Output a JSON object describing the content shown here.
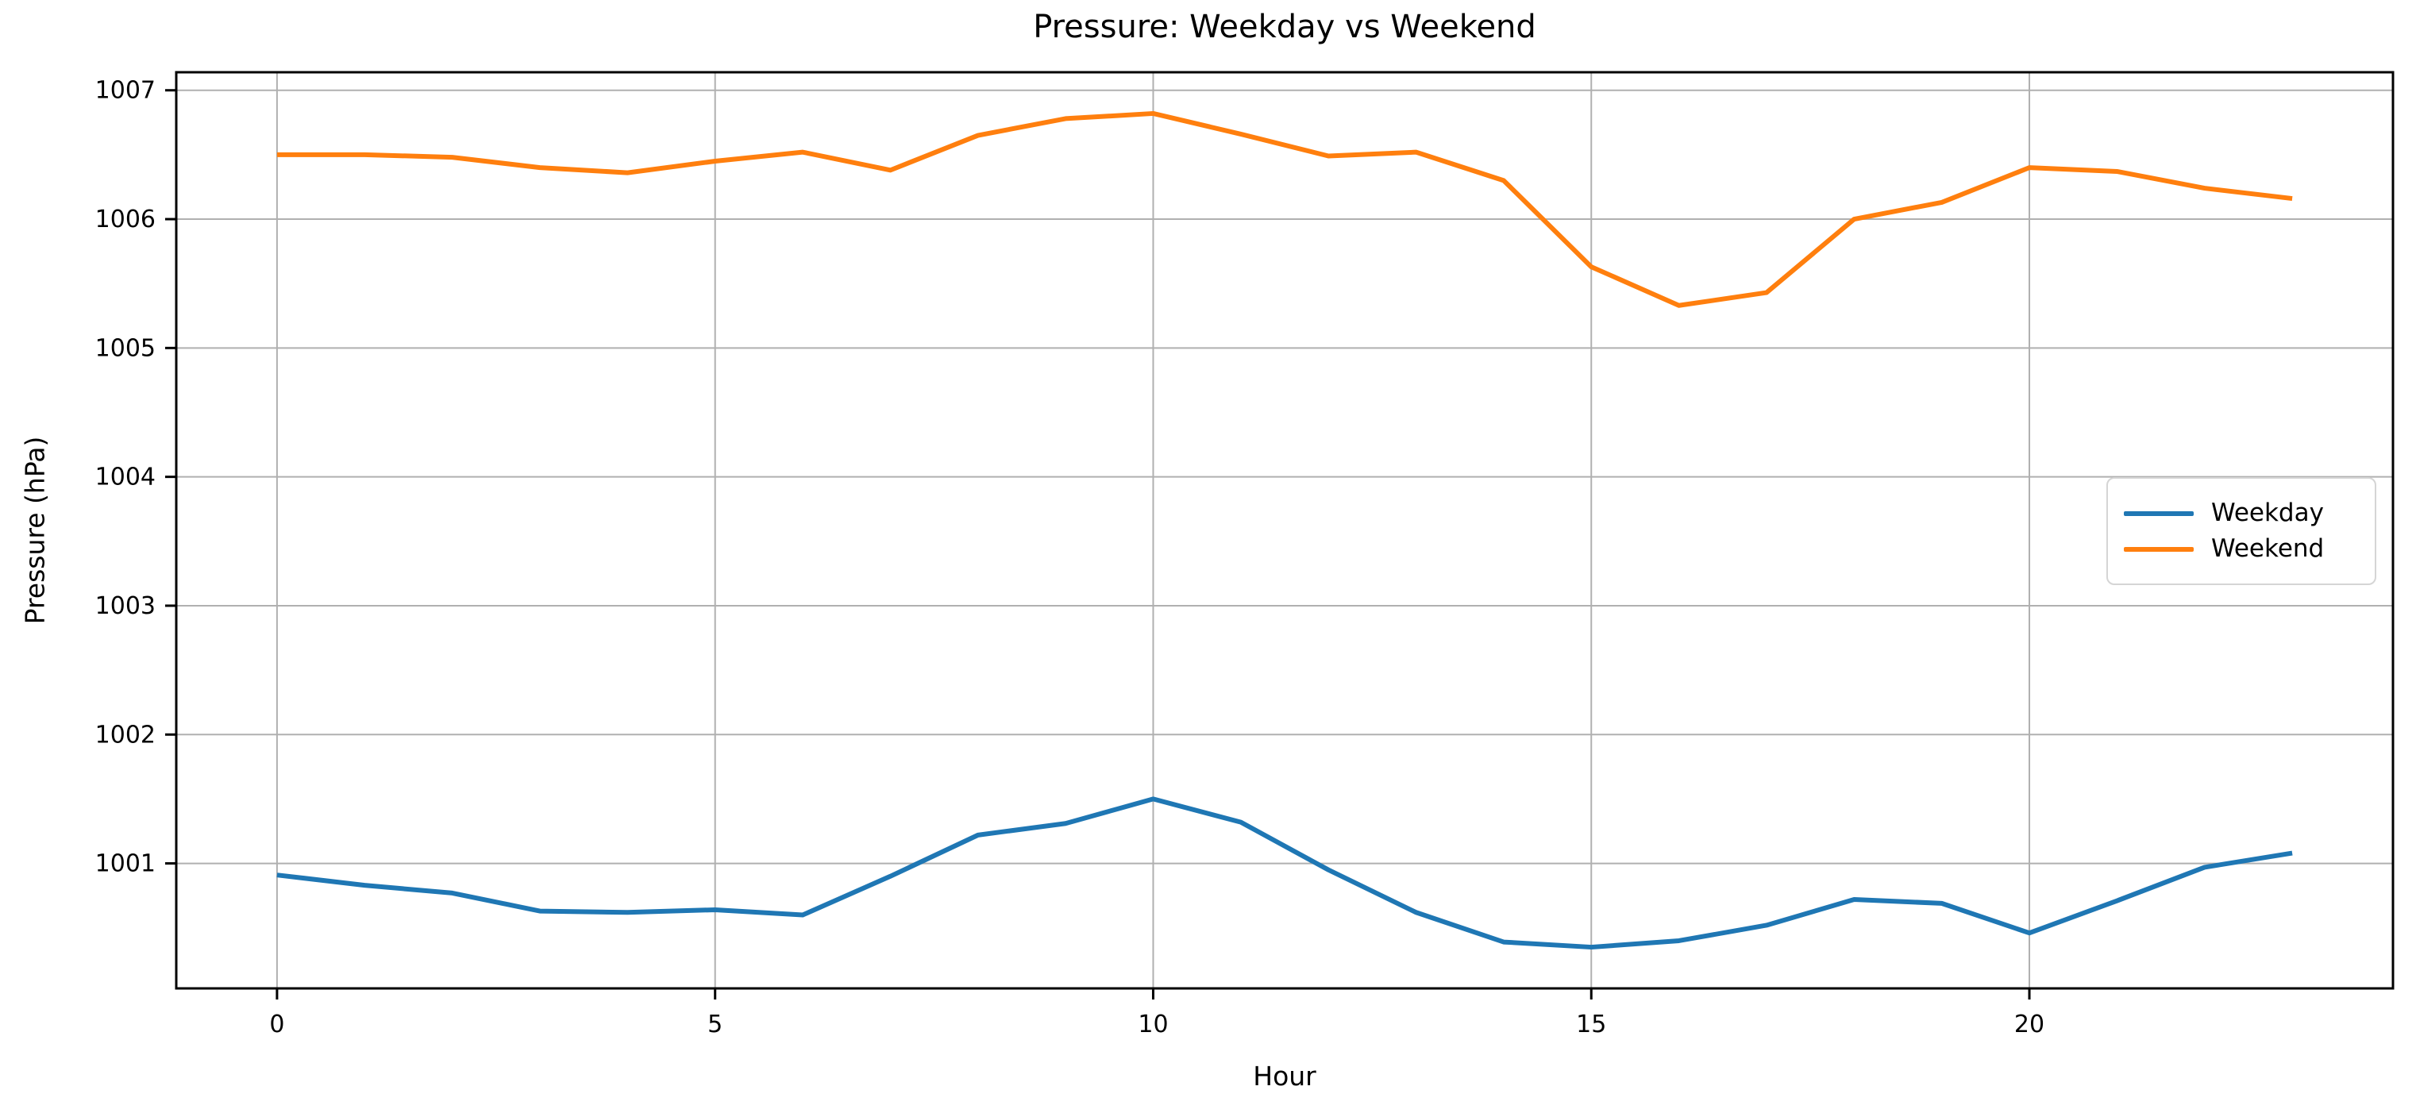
{
  "chart_data": {
    "type": "line",
    "title": "Pressure: Weekday vs Weekend",
    "xlabel": "Hour",
    "ylabel": "Pressure (hPa)",
    "x": [
      0,
      1,
      2,
      3,
      4,
      5,
      6,
      7,
      8,
      9,
      10,
      11,
      12,
      13,
      14,
      15,
      16,
      17,
      18,
      19,
      20,
      21,
      22,
      23
    ],
    "series": [
      {
        "name": "Weekday",
        "color": "#1f77b4",
        "values": [
          1000.91,
          1000.83,
          1000.77,
          1000.63,
          1000.62,
          1000.64,
          1000.6,
          1000.9,
          1001.22,
          1001.31,
          1001.5,
          1001.32,
          1000.95,
          1000.62,
          1000.39,
          1000.35,
          1000.4,
          1000.52,
          1000.72,
          1000.69,
          1000.46,
          1000.71,
          1000.97,
          1001.08
        ]
      },
      {
        "name": "Weekend",
        "color": "#ff7f0e",
        "values": [
          1006.5,
          1006.5,
          1006.48,
          1006.4,
          1006.36,
          1006.45,
          1006.52,
          1006.38,
          1006.65,
          1006.78,
          1006.82,
          1006.66,
          1006.49,
          1006.52,
          1006.3,
          1005.63,
          1005.33,
          1005.43,
          1006.0,
          1006.13,
          1006.4,
          1006.37,
          1006.24,
          1006.16
        ]
      }
    ],
    "xlim": [
      -1.15,
      24.15
    ],
    "ylim": [
      1000.03,
      1007.14
    ],
    "xticks": [
      0,
      5,
      10,
      15,
      20
    ],
    "yticks": [
      1001,
      1002,
      1003,
      1004,
      1005,
      1006,
      1007
    ],
    "grid": true,
    "grid_color": "#b0b0b0",
    "axis_color": "#000000",
    "background": "#ffffff",
    "legend_position": "center right"
  }
}
